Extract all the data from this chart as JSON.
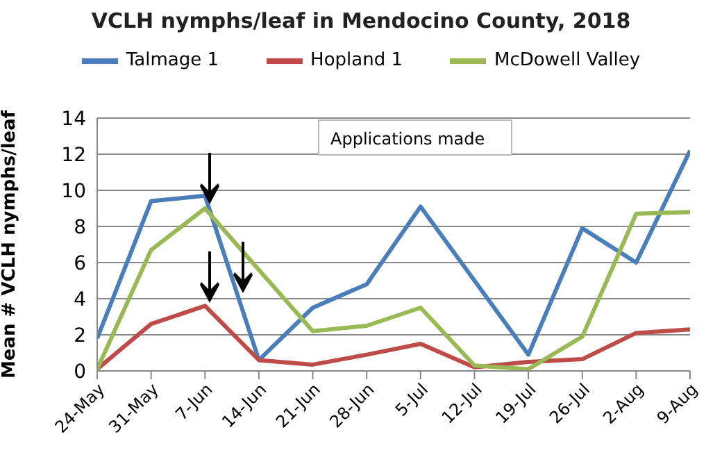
{
  "chart_data": {
    "type": "line",
    "title": "VCLH nymphs/leaf in Mendocino County, 2018",
    "ylabel": "Mean  # VCLH nymphs/leaf",
    "categories": [
      "24-May",
      "31-May",
      "7-Jun",
      "14-Jun",
      "21-Jun",
      "28-Jun",
      "5-Jul",
      "12-Jul",
      "19-Jul",
      "26-Jul",
      "2-Aug",
      "9-Aug"
    ],
    "series": [
      {
        "name": "Talmage 1",
        "color": "#4a7ebb",
        "values": [
          1.8,
          9.4,
          9.7,
          0.6,
          3.5,
          4.8,
          9.1,
          5.0,
          0.9,
          7.9,
          6.0,
          12.2
        ]
      },
      {
        "name": "Hopland 1",
        "color": "#be4b48",
        "values": [
          0.1,
          2.6,
          3.6,
          0.6,
          0.35,
          0.9,
          1.5,
          0.2,
          0.5,
          0.65,
          2.1,
          2.3
        ]
      },
      {
        "name": "McDowell Valley",
        "color": "#98b954",
        "values": [
          0.1,
          6.7,
          9.0,
          5.6,
          2.2,
          2.5,
          3.5,
          0.3,
          0.1,
          1.9,
          8.7,
          8.8
        ]
      }
    ],
    "ylim": [
      0,
      14
    ],
    "yticks": [
      0,
      2,
      4,
      6,
      8,
      10,
      12,
      14
    ],
    "grid": "y",
    "legend": "top",
    "marker": "none",
    "line_style": "solid",
    "annotations": [
      "Applications made"
    ]
  }
}
